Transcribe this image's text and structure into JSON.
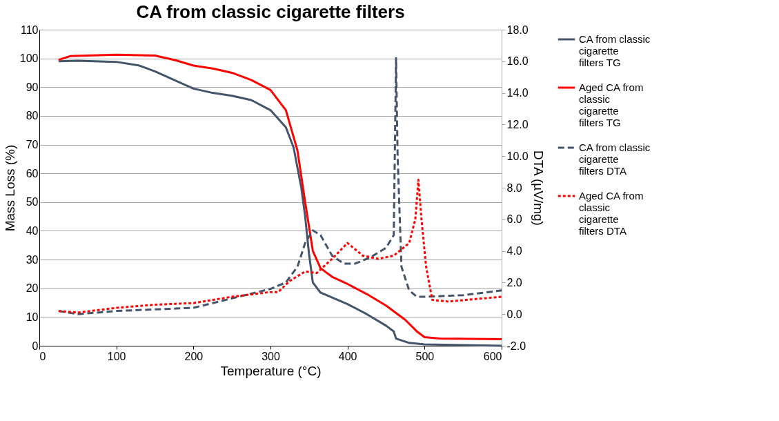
{
  "chart_data": {
    "type": "line",
    "title": "CA from classic cigarette filters",
    "xlabel": "Temperature (°C)",
    "ylabel": "Mass Loss (%)",
    "y2label": "DTA (µV/mg)",
    "xlim": [
      0,
      600
    ],
    "xticks": [
      0,
      100,
      200,
      300,
      400,
      500,
      600
    ],
    "ylim": [
      0,
      110
    ],
    "yticks": [
      0,
      10,
      20,
      30,
      40,
      50,
      60,
      70,
      80,
      90,
      100,
      110
    ],
    "y2lim": [
      -2,
      18
    ],
    "y2ticks": [
      {
        "value": -2,
        "label": "-2.0"
      },
      {
        "value": 0,
        "label": "0.0"
      },
      {
        "value": 2,
        "label": "2.0"
      },
      {
        "value": 4,
        "label": "4.0"
      },
      {
        "value": 6,
        "label": "6.0"
      },
      {
        "value": 8,
        "label": "8.0"
      },
      {
        "value": 10,
        "label": "10.0"
      },
      {
        "value": 12,
        "label": "12.0"
      },
      {
        "value": 14,
        "label": "14.0"
      },
      {
        "value": 16,
        "label": "16.0"
      },
      {
        "value": 18,
        "label": "18.0"
      }
    ],
    "grid": "y",
    "legend": "right",
    "marker": "none",
    "series": [
      {
        "name": "CA from classic cigarette filters TG",
        "color": "#44546a",
        "line_style": "solid",
        "x": [
          25,
          50,
          100,
          130,
          150,
          175,
          200,
          225,
          250,
          275,
          300,
          320,
          330,
          340,
          345,
          350,
          355,
          365,
          400,
          425,
          450,
          460,
          463,
          480,
          500,
          600
        ],
        "values": [
          99,
          99.2,
          98.8,
          97.5,
          95.5,
          92.5,
          89.5,
          88,
          87,
          85.5,
          82,
          76,
          69,
          55,
          45,
          32,
          22,
          18.5,
          14.5,
          11,
          7,
          5,
          2.5,
          1,
          0.5,
          0
        ]
      },
      {
        "name": "Aged CA from classic cigarette filters TG",
        "color": "#ff0000",
        "line_style": "solid",
        "x": [
          25,
          40,
          100,
          150,
          175,
          200,
          225,
          250,
          275,
          300,
          320,
          335,
          345,
          355,
          365,
          380,
          400,
          425,
          450,
          475,
          490,
          500,
          520,
          600
        ],
        "values": [
          99.5,
          100.8,
          101.3,
          101,
          99.5,
          97.5,
          96.5,
          95,
          92.5,
          89,
          82,
          68,
          50,
          33,
          27,
          24,
          21.5,
          18,
          14,
          9,
          5,
          3,
          2.5,
          2.3
        ]
      },
      {
        "name": "CA from classic cigarette filters DTA",
        "color": "#44546a",
        "line_style": "dashed",
        "axis": "y2",
        "x": [
          25,
          50,
          100,
          150,
          200,
          250,
          300,
          320,
          335,
          345,
          355,
          365,
          380,
          395,
          410,
          430,
          450,
          460,
          463,
          465,
          470,
          480,
          490,
          500,
          550,
          600
        ],
        "values": [
          0.2,
          0,
          0.2,
          0.3,
          0.4,
          1,
          1.6,
          2,
          3,
          4.5,
          5.3,
          5,
          3.7,
          3.2,
          3.2,
          3.6,
          4.2,
          5,
          16.2,
          10,
          3,
          1.5,
          1.1,
          1.1,
          1.2,
          1.5
        ]
      },
      {
        "name": "Aged CA from classic cigarette filters DTA",
        "color": "#ff0000",
        "line_style": "dotted",
        "axis": "y2",
        "x": [
          25,
          50,
          100,
          150,
          200,
          250,
          300,
          310,
          325,
          345,
          360,
          380,
          400,
          420,
          440,
          460,
          480,
          488,
          492,
          496,
          502,
          510,
          530,
          600
        ],
        "values": [
          0.2,
          0.1,
          0.4,
          0.6,
          0.7,
          1.1,
          1.4,
          1.4,
          2.1,
          2.7,
          2.6,
          3.5,
          4.5,
          3.7,
          3.5,
          3.7,
          4.5,
          6,
          8.5,
          6,
          3,
          0.9,
          0.8,
          1.1
        ]
      }
    ]
  }
}
